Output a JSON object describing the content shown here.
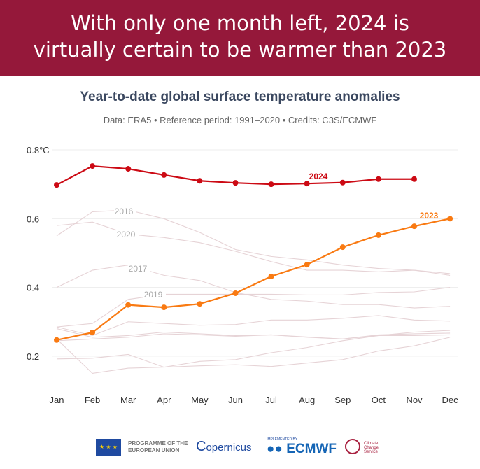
{
  "banner": {
    "line1": "With only one month left, 2024 is",
    "line2": "virtually certain to be warmer than 2023"
  },
  "chart_data": {
    "type": "line",
    "title": "Year-to-date global surface temperature anomalies",
    "subtitle": "Data: ERA5 • Reference period: 1991–2020 • Credits: C3S/ECMWF",
    "categories": [
      "Jan",
      "Feb",
      "Mar",
      "Apr",
      "May",
      "Jun",
      "Jul",
      "Aug",
      "Sep",
      "Oct",
      "Nov",
      "Dec"
    ],
    "ylim": [
      0.15,
      0.8
    ],
    "yticks": [
      {
        "v": 0.8,
        "label": "0.8°C"
      },
      {
        "v": 0.6,
        "label": "0.6"
      },
      {
        "v": 0.4,
        "label": "0.4"
      },
      {
        "v": 0.2,
        "label": "0.2"
      }
    ],
    "grid": true,
    "series": [
      {
        "name": "2016",
        "color": "#e6d3d6",
        "label": "2016",
        "values": [
          0.55,
          0.62,
          0.625,
          0.6,
          0.56,
          0.51,
          0.49,
          0.48,
          0.465,
          0.455,
          0.45,
          0.44
        ]
      },
      {
        "name": "2020",
        "color": "#e6d3d6",
        "label": "2020",
        "values": [
          0.58,
          0.59,
          0.555,
          0.545,
          0.53,
          0.505,
          0.475,
          0.45,
          0.45,
          0.445,
          0.45,
          0.435
        ]
      },
      {
        "name": "2017",
        "color": "#e6d3d6",
        "label": "2017",
        "values": [
          0.4,
          0.45,
          0.465,
          0.435,
          0.42,
          0.385,
          0.365,
          0.36,
          0.35,
          0.35,
          0.34,
          0.345
        ]
      },
      {
        "name": "2019",
        "color": "#e6d3d6",
        "label": "2019",
        "values": [
          0.285,
          0.295,
          0.365,
          0.38,
          0.38,
          0.38,
          0.38,
          0.378,
          0.378,
          0.385,
          0.387,
          0.4
        ]
      },
      {
        "color": "#e6d3d6",
        "values": [
          0.285,
          0.26,
          0.3,
          0.295,
          0.29,
          0.292,
          0.305,
          0.305,
          0.31,
          0.318,
          0.305,
          0.302
        ]
      },
      {
        "color": "#e6d3d6",
        "values": [
          0.28,
          0.255,
          0.26,
          0.27,
          0.265,
          0.26,
          0.262,
          0.255,
          0.25,
          0.262,
          0.265,
          0.267
        ]
      },
      {
        "color": "#e6d3d6",
        "values": [
          0.245,
          0.25,
          0.255,
          0.265,
          0.262,
          0.258,
          0.262,
          0.256,
          0.25,
          0.26,
          0.26,
          0.262
        ]
      },
      {
        "color": "#e6d3d6",
        "values": [
          0.192,
          0.194,
          0.205,
          0.168,
          0.172,
          0.175,
          0.17,
          0.18,
          0.19,
          0.215,
          0.23,
          0.255
        ]
      },
      {
        "color": "#e6d3d6",
        "values": [
          0.25,
          0.15,
          0.165,
          0.168,
          0.185,
          0.19,
          0.21,
          0.225,
          0.245,
          0.26,
          0.27,
          0.275
        ]
      },
      {
        "name": "2023",
        "color": "#f97a12",
        "label": "2023",
        "values": [
          0.247,
          0.269,
          0.349,
          0.342,
          0.352,
          0.383,
          0.432,
          0.466,
          0.517,
          0.552,
          0.578,
          0.6
        ]
      },
      {
        "name": "2024",
        "color": "#cc0a14",
        "label": "2024",
        "values": [
          0.698,
          0.753,
          0.745,
          0.727,
          0.71,
          0.704,
          0.7,
          0.702,
          0.705,
          0.715,
          0.715,
          null
        ]
      }
    ]
  },
  "logos": {
    "eu": "PROGRAMME OF THE EUROPEAN UNION",
    "copernicus": "opernicus",
    "ecmwf": "ECMWF",
    "ecmwf_small": "IMPLEMENTED BY",
    "c3s": "Climate Change Service"
  }
}
